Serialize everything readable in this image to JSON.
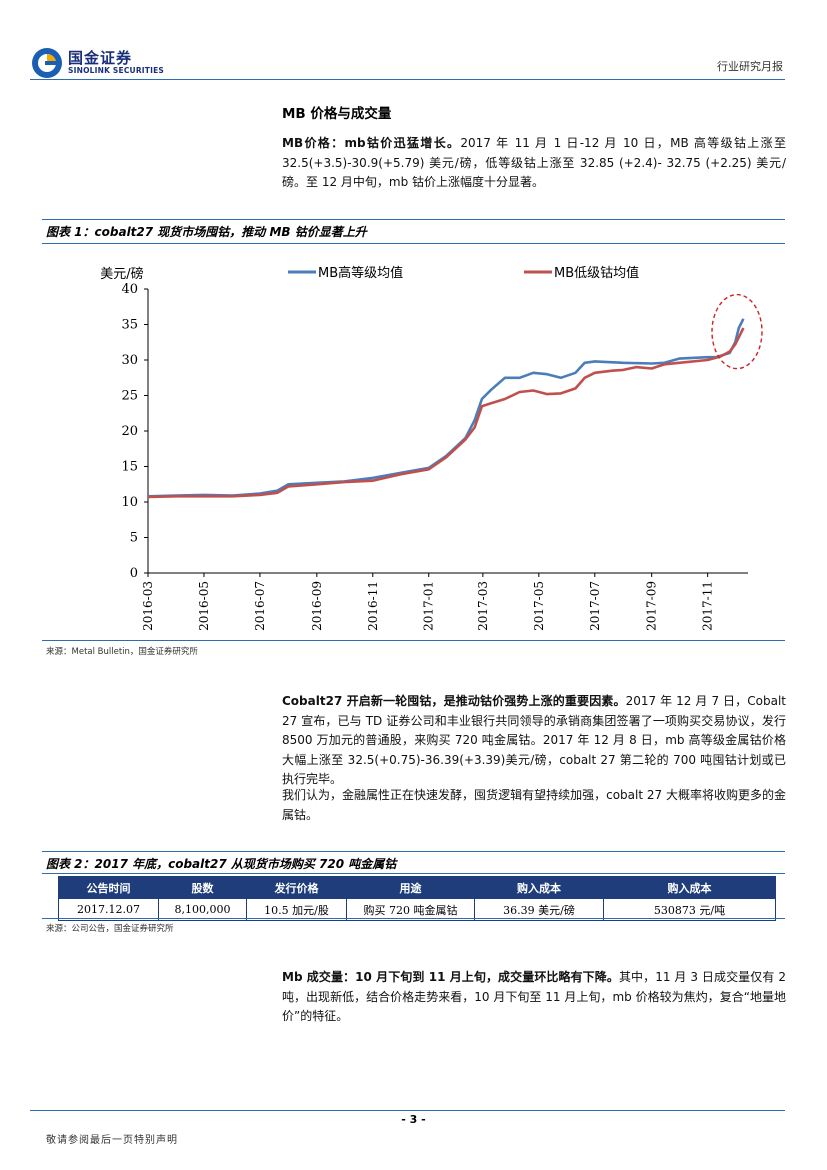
{
  "header": {
    "logo_cn": "国金证券",
    "logo_en": "SINOLINK SECURITIES",
    "report_type": "行业研究月报"
  },
  "section": {
    "title": "MB 价格与成交量"
  },
  "para1": {
    "bold": "MB价格：mb钴价迅猛增长。",
    "text": "2017 年 11 月 1 日-12 月 10 日，MB 高等级钴上涨至 32.5(+3.5)-30.9(+5.79) 美元/磅，低等级钴上涨至 32.85 (+2.4)- 32.75 (+2.25) 美元/磅。至 12 月中旬，mb 钴价上涨幅度十分显著。"
  },
  "figure1": {
    "title": "图表 1：cobalt27 现货市场囤钴，推动 MB 钴价显著上升",
    "source": "来源：Metal Bulletin，国金证券研究所"
  },
  "chart_data": {
    "type": "line",
    "ylabel": "美元/磅",
    "ylim": [
      0,
      40
    ],
    "yticks": [
      "0",
      "5",
      "10",
      "15",
      "20",
      "25",
      "30",
      "35",
      "40"
    ],
    "xticks": [
      "2016-03",
      "2016-05",
      "2016-07",
      "2016-09",
      "2016-11",
      "2017-01",
      "2017-03",
      "2017-05",
      "2017-07",
      "2017-09",
      "2017-11"
    ],
    "x_range": [
      "2016-03-01",
      "2017-12-15"
    ],
    "legend_position": "top",
    "grid": false,
    "series": [
      {
        "name": "MB高等级均值",
        "color": "#4a7ebb",
        "points": [
          [
            "2016-03-01",
            10.8
          ],
          [
            "2016-04-01",
            10.9
          ],
          [
            "2016-05-01",
            11.0
          ],
          [
            "2016-06-01",
            10.9
          ],
          [
            "2016-07-01",
            11.2
          ],
          [
            "2016-07-20",
            11.6
          ],
          [
            "2016-08-01",
            12.5
          ],
          [
            "2016-09-01",
            12.7
          ],
          [
            "2016-10-01",
            12.9
          ],
          [
            "2016-11-01",
            13.4
          ],
          [
            "2016-12-01",
            14.1
          ],
          [
            "2017-01-01",
            14.8
          ],
          [
            "2017-01-20",
            16.5
          ],
          [
            "2017-02-10",
            19.0
          ],
          [
            "2017-02-20",
            21.5
          ],
          [
            "2017-02-28",
            24.5
          ],
          [
            "2017-03-10",
            25.8
          ],
          [
            "2017-03-25",
            27.5
          ],
          [
            "2017-04-10",
            27.5
          ],
          [
            "2017-04-25",
            28.2
          ],
          [
            "2017-05-10",
            28.0
          ],
          [
            "2017-05-25",
            27.5
          ],
          [
            "2017-06-10",
            28.2
          ],
          [
            "2017-06-20",
            29.6
          ],
          [
            "2017-07-01",
            29.8
          ],
          [
            "2017-08-01",
            29.6
          ],
          [
            "2017-09-01",
            29.5
          ],
          [
            "2017-09-15",
            29.6
          ],
          [
            "2017-10-01",
            30.2
          ],
          [
            "2017-11-01",
            30.4
          ],
          [
            "2017-11-10",
            30.4
          ],
          [
            "2017-11-25",
            31.0
          ],
          [
            "2017-12-01",
            32.5
          ],
          [
            "2017-12-05",
            34.5
          ],
          [
            "2017-12-10",
            35.8
          ]
        ]
      },
      {
        "name": "MB低级钴均值",
        "color": "#c0504d",
        "points": [
          [
            "2016-03-01",
            10.7
          ],
          [
            "2016-04-01",
            10.8
          ],
          [
            "2016-05-01",
            10.8
          ],
          [
            "2016-06-01",
            10.8
          ],
          [
            "2016-07-01",
            11.0
          ],
          [
            "2016-07-20",
            11.3
          ],
          [
            "2016-08-01",
            12.2
          ],
          [
            "2016-09-01",
            12.5
          ],
          [
            "2016-10-01",
            12.8
          ],
          [
            "2016-11-01",
            13.0
          ],
          [
            "2016-12-01",
            13.9
          ],
          [
            "2017-01-01",
            14.6
          ],
          [
            "2017-01-20",
            16.3
          ],
          [
            "2017-02-10",
            18.8
          ],
          [
            "2017-02-20",
            20.5
          ],
          [
            "2017-02-28",
            23.5
          ],
          [
            "2017-03-10",
            23.9
          ],
          [
            "2017-03-25",
            24.5
          ],
          [
            "2017-04-10",
            25.5
          ],
          [
            "2017-04-25",
            25.7
          ],
          [
            "2017-05-10",
            25.2
          ],
          [
            "2017-05-25",
            25.3
          ],
          [
            "2017-06-10",
            26.0
          ],
          [
            "2017-06-20",
            27.5
          ],
          [
            "2017-07-01",
            28.2
          ],
          [
            "2017-07-20",
            28.5
          ],
          [
            "2017-08-01",
            28.6
          ],
          [
            "2017-08-15",
            29.0
          ],
          [
            "2017-09-01",
            28.8
          ],
          [
            "2017-09-15",
            29.4
          ],
          [
            "2017-10-01",
            29.6
          ],
          [
            "2017-11-01",
            30.0
          ],
          [
            "2017-11-15",
            30.5
          ],
          [
            "2017-11-25",
            31.2
          ],
          [
            "2017-12-01",
            32.2
          ],
          [
            "2017-12-05",
            33.2
          ],
          [
            "2017-12-10",
            34.5
          ]
        ]
      }
    ],
    "annotations": [
      {
        "type": "dashed-ellipse",
        "color": "#cc2222",
        "around": "2017-12"
      }
    ]
  },
  "para2": {
    "bold": "Cobalt27 开启新一轮囤钴，是推动钴价强势上涨的重要因素。",
    "text": "2017 年 12 月 7 日，Cobalt 27 宣布，已与 TD 证券公司和丰业银行共同领导的承销商集团签署了一项购买交易协议，发行 8500 万加元的普通股，来购买 720 吨金属钴。2017 年 12 月 8 日，mb 高等级金属钴价格大幅上涨至 32.5(+0.75)-36.39(+3.39)美元/磅，cobalt 27 第二轮的 700 吨囤钴计划或已执行完毕。"
  },
  "para3": {
    "text": "我们认为，金融属性正在快速发酵，囤货逻辑有望持续加强，cobalt 27 大概率将收购更多的金属钴。"
  },
  "figure2": {
    "title": "图表 2：2017 年底，cobalt27 从现货市场购买 720 吨金属钴",
    "source": "来源：公司公告，国金证券研究所",
    "headers": [
      "公告时间",
      "股数",
      "发行价格",
      "用途",
      "购入成本",
      "购入成本"
    ],
    "row": [
      "2017.12.07",
      "8,100,000",
      "10.5 加元/股",
      "购买 720 吨金属钴",
      "36.39 美元/磅",
      "530873 元/吨"
    ]
  },
  "para4": {
    "bold": "Mb 成交量：10 月下旬到 11 月上旬，成交量环比略有下降。",
    "text": "其中，11 月 3 日成交量仅有 2 吨，出现新低，结合价格走势来看，10 月下旬至 11 月上旬，mb 价格较为焦灼，复合“地量地价”的特征。"
  },
  "footer": {
    "page": "- 3 -",
    "disclaimer": "敬请参阅最后一页特别声明"
  }
}
